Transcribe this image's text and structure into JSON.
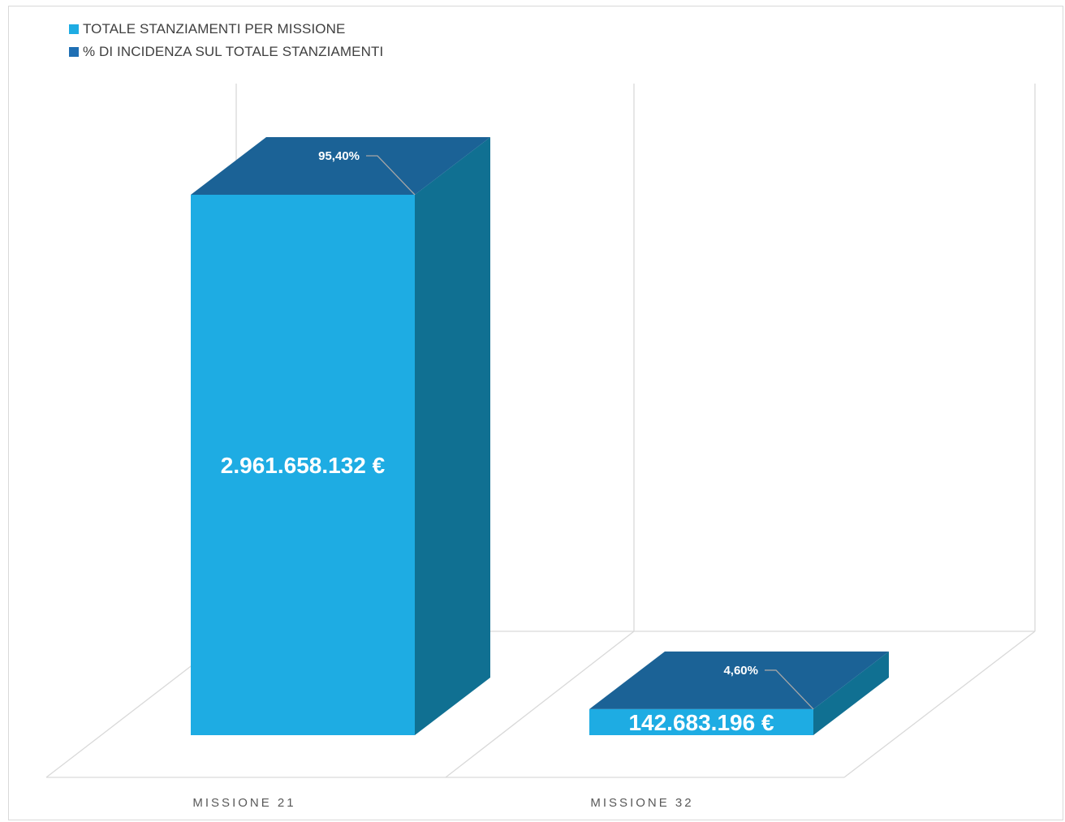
{
  "chart_data": {
    "type": "bar",
    "style": "3d-column",
    "categories": [
      "MISSIONE 21",
      "MISSIONE 32"
    ],
    "series": [
      {
        "name": "TOTALE STANZIAMENTI PER MISSIONE",
        "color": "#1EACE3",
        "values": [
          2961658132,
          142683196
        ],
        "labels": [
          "2.961.658.132 €",
          "142.683.196 €"
        ]
      },
      {
        "name": "% DI INCIDENZA SUL TOTALE STANZIAMENTI",
        "color": "#1F6FB4",
        "values": [
          95.4,
          4.6
        ],
        "labels": [
          "95,40%",
          "4,60%"
        ]
      }
    ],
    "legend_position": "top-left",
    "grid": false
  },
  "colors": {
    "bar_front": "#1EACE3",
    "bar_top": "#1B6296",
    "bar_side": "#107092",
    "gridline": "#d9d9d9",
    "leader": "#a6a6a6"
  }
}
